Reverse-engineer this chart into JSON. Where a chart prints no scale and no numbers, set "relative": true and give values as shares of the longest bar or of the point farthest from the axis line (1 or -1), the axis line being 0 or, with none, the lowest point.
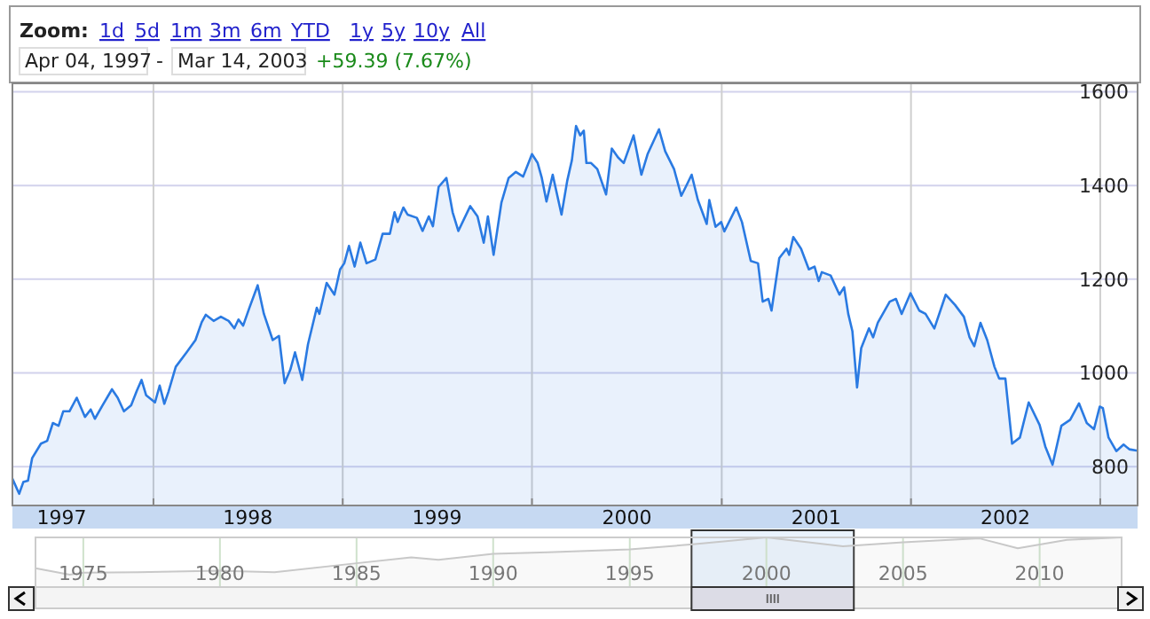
{
  "chart_data": [
    {
      "type": "area",
      "annotations": [
        "Zoom:",
        "1d",
        "5d",
        "1m",
        "3m",
        "6m",
        "YTD",
        "1y",
        "5y",
        "10y",
        "All",
        "Apr 04, 1997",
        "-",
        "Mar 14, 2003",
        "+59.39 (7.67%)"
      ],
      "x": [
        "1997-04-04",
        "1997-04-17",
        "1997-04-25",
        "1997-05-04",
        "1997-05-12",
        "1997-05-29",
        "1997-06-10",
        "1997-06-21",
        "1997-07-02",
        "1997-07-11",
        "1997-07-23",
        "1997-08-06",
        "1997-08-22",
        "1997-09-02",
        "1997-09-10",
        "1997-09-25",
        "1997-10-13",
        "1997-10-24",
        "1997-11-05",
        "1997-11-19",
        "1997-11-30",
        "1997-12-09",
        "1997-12-18",
        "1998-01-04",
        "1998-01-13",
        "1998-01-22",
        "1998-01-30",
        "1998-02-13",
        "1998-03-06",
        "1998-03-23",
        "1998-04-04",
        "1998-04-12",
        "1998-04-27",
        "1998-05-11",
        "1998-05-26",
        "1998-06-06",
        "1998-06-14",
        "1998-06-23",
        "1998-07-05",
        "1998-07-21",
        "1998-08-02",
        "1998-08-19",
        "1998-08-31",
        "1998-09-11",
        "1998-09-22",
        "1998-10-01",
        "1998-10-15",
        "1998-10-26",
        "1998-11-12",
        "1998-11-17",
        "1998-12-01",
        "1998-12-16",
        "1998-12-27",
        "1999-01-04",
        "1999-01-13",
        "1999-01-24",
        "1999-02-04",
        "1999-02-16",
        "1999-03-05",
        "1999-03-19",
        "1999-04-02",
        "1999-04-11",
        "1999-04-17",
        "1999-04-28",
        "1999-05-06",
        "1999-05-24",
        "1999-06-04",
        "1999-06-16",
        "1999-06-24",
        "1999-07-05",
        "1999-07-20",
        "1999-08-01",
        "1999-08-12",
        "1999-09-04",
        "1999-09-18",
        "1999-09-30",
        "1999-10-08",
        "1999-10-19",
        "1999-11-03",
        "1999-11-17",
        "1999-12-01",
        "1999-12-15",
        "2000-01-01",
        "2000-01-12",
        "2000-01-20",
        "2000-01-29",
        "2000-02-10",
        "2000-02-27",
        "2000-03-09",
        "2000-03-18",
        "2000-03-26",
        "2000-04-03",
        "2000-04-10",
        "2000-04-15",
        "2000-04-24",
        "2000-05-06",
        "2000-05-23",
        "2000-06-03",
        "2000-06-15",
        "2000-06-26",
        "2000-07-15",
        "2000-07-30",
        "2000-08-11",
        "2000-09-02",
        "2000-09-14",
        "2000-10-01",
        "2000-10-15",
        "2000-10-24",
        "2000-11-04",
        "2000-11-16",
        "2000-12-03",
        "2000-12-08",
        "2000-12-20",
        "2000-12-31",
        "2001-01-06",
        "2001-01-29",
        "2001-02-09",
        "2001-02-26",
        "2001-03-12",
        "2001-03-21",
        "2001-04-01",
        "2001-04-07",
        "2001-04-22",
        "2001-05-06",
        "2001-05-11",
        "2001-05-19",
        "2001-06-03",
        "2001-06-18",
        "2001-06-29",
        "2001-07-07",
        "2001-07-13",
        "2001-07-30",
        "2001-08-16",
        "2001-08-25",
        "2001-09-02",
        "2001-09-10",
        "2001-09-19",
        "2001-09-27",
        "2001-10-12",
        "2001-10-20",
        "2001-10-29",
        "2001-11-21",
        "2001-12-03",
        "2001-12-14",
        "2001-12-31",
        "2002-01-17",
        "2002-01-29",
        "2002-02-15",
        "2002-03-09",
        "2002-03-27",
        "2002-04-13",
        "2002-04-24",
        "2002-05-03",
        "2002-05-15",
        "2002-05-28",
        "2002-06-11",
        "2002-06-20",
        "2002-07-02",
        "2002-07-15",
        "2002-07-30",
        "2002-08-16",
        "2002-09-06",
        "2002-09-17",
        "2002-10-01",
        "2002-10-18",
        "2002-11-04",
        "2002-11-21",
        "2002-12-06",
        "2002-12-20",
        "2002-12-31",
        "2003-01-06",
        "2003-01-17",
        "2003-02-01",
        "2003-02-15",
        "2003-02-26",
        "2003-03-14"
      ],
      "series": [
        {
          "color": "#2a7ae2",
          "values": [
            774,
            742,
            767,
            770,
            818,
            849,
            855,
            893,
            887,
            918,
            918,
            947,
            906,
            922,
            902,
            931,
            965,
            947,
            918,
            931,
            962,
            985,
            952,
            937,
            973,
            934,
            960,
            1013,
            1044,
            1070,
            1108,
            1124,
            1111,
            1120,
            1111,
            1095,
            1114,
            1101,
            1139,
            1187,
            1126,
            1070,
            1079,
            978,
            1007,
            1044,
            985,
            1061,
            1139,
            1126,
            1192,
            1167,
            1221,
            1234,
            1271,
            1227,
            1278,
            1234,
            1242,
            1297,
            1297,
            1343,
            1322,
            1353,
            1338,
            1331,
            1303,
            1334,
            1313,
            1397,
            1416,
            1343,
            1303,
            1356,
            1334,
            1278,
            1334,
            1252,
            1363,
            1416,
            1429,
            1419,
            1467,
            1448,
            1416,
            1366,
            1423,
            1338,
            1410,
            1454,
            1527,
            1507,
            1517,
            1448,
            1448,
            1435,
            1381,
            1479,
            1460,
            1448,
            1507,
            1423,
            1467,
            1520,
            1473,
            1435,
            1378,
            1398,
            1423,
            1369,
            1318,
            1369,
            1312,
            1322,
            1302,
            1353,
            1322,
            1239,
            1234,
            1152,
            1158,
            1133,
            1245,
            1265,
            1252,
            1290,
            1265,
            1221,
            1227,
            1196,
            1215,
            1208,
            1167,
            1183,
            1126,
            1089,
            969,
            1053,
            1095,
            1076,
            1107,
            1152,
            1158,
            1126,
            1170,
            1133,
            1126,
            1095,
            1167,
            1145,
            1120,
            1076,
            1057,
            1107,
            1070,
            1013,
            988,
            988,
            849,
            862,
            937,
            889,
            843,
            804,
            887,
            900,
            935,
            893,
            880,
            928,
            925,
            862,
            833,
            847,
            837,
            834
          ]
        }
      ],
      "xlim": [
        "1997-04-04",
        "2003-03-14"
      ],
      "ylim": [
        717,
        1618
      ],
      "xticks": [
        {
          "value": "1998-01-01",
          "label": null
        },
        {
          "value": "1999-01-01",
          "label": null
        },
        {
          "value": "2000-01-01",
          "label": null
        },
        {
          "value": "2001-01-01",
          "label": null
        },
        {
          "value": "2002-01-01",
          "label": null
        },
        {
          "value": "2003-01-01",
          "label": null
        },
        {
          "value": "1997-07-08",
          "label": "1997"
        },
        {
          "value": "1998-07-02",
          "label": "1998"
        },
        {
          "value": "1999-07-02",
          "label": "1999"
        },
        {
          "value": "2000-07-02",
          "label": "2000"
        },
        {
          "value": "2001-07-02",
          "label": "2001"
        },
        {
          "value": "2002-07-02",
          "label": "2002"
        }
      ],
      "yticks": [
        800,
        1000,
        1200,
        1400,
        1600
      ],
      "grid": true
    },
    {
      "type": "area",
      "x": [
        1973.25,
        1974.5,
        1975,
        1977,
        1980,
        1982,
        1985,
        1987,
        1988,
        1990,
        1992,
        1995,
        1997.3,
        2000,
        2002.8,
        2005,
        2007.8,
        2009.2,
        2011,
        2013
      ],
      "series": [
        {
          "color": "#c8c8c8",
          "values": [
            0.38,
            0.25,
            0.29,
            0.3,
            0.33,
            0.3,
            0.48,
            0.6,
            0.55,
            0.67,
            0.7,
            0.76,
            0.86,
            1,
            0.82,
            0.9,
            0.98,
            0.78,
            0.95,
            1
          ]
        }
      ],
      "relative": true,
      "bands": [
        {
          "axis": "x",
          "from": 1997.26,
          "to": 2003.2,
          "color": "#dcebfb"
        }
      ],
      "xlim": [
        1973.25,
        2013
      ],
      "xticks": [
        1975,
        1980,
        1985,
        1990,
        1995,
        2000,
        2005,
        2010
      ],
      "grid": "x"
    }
  ]
}
